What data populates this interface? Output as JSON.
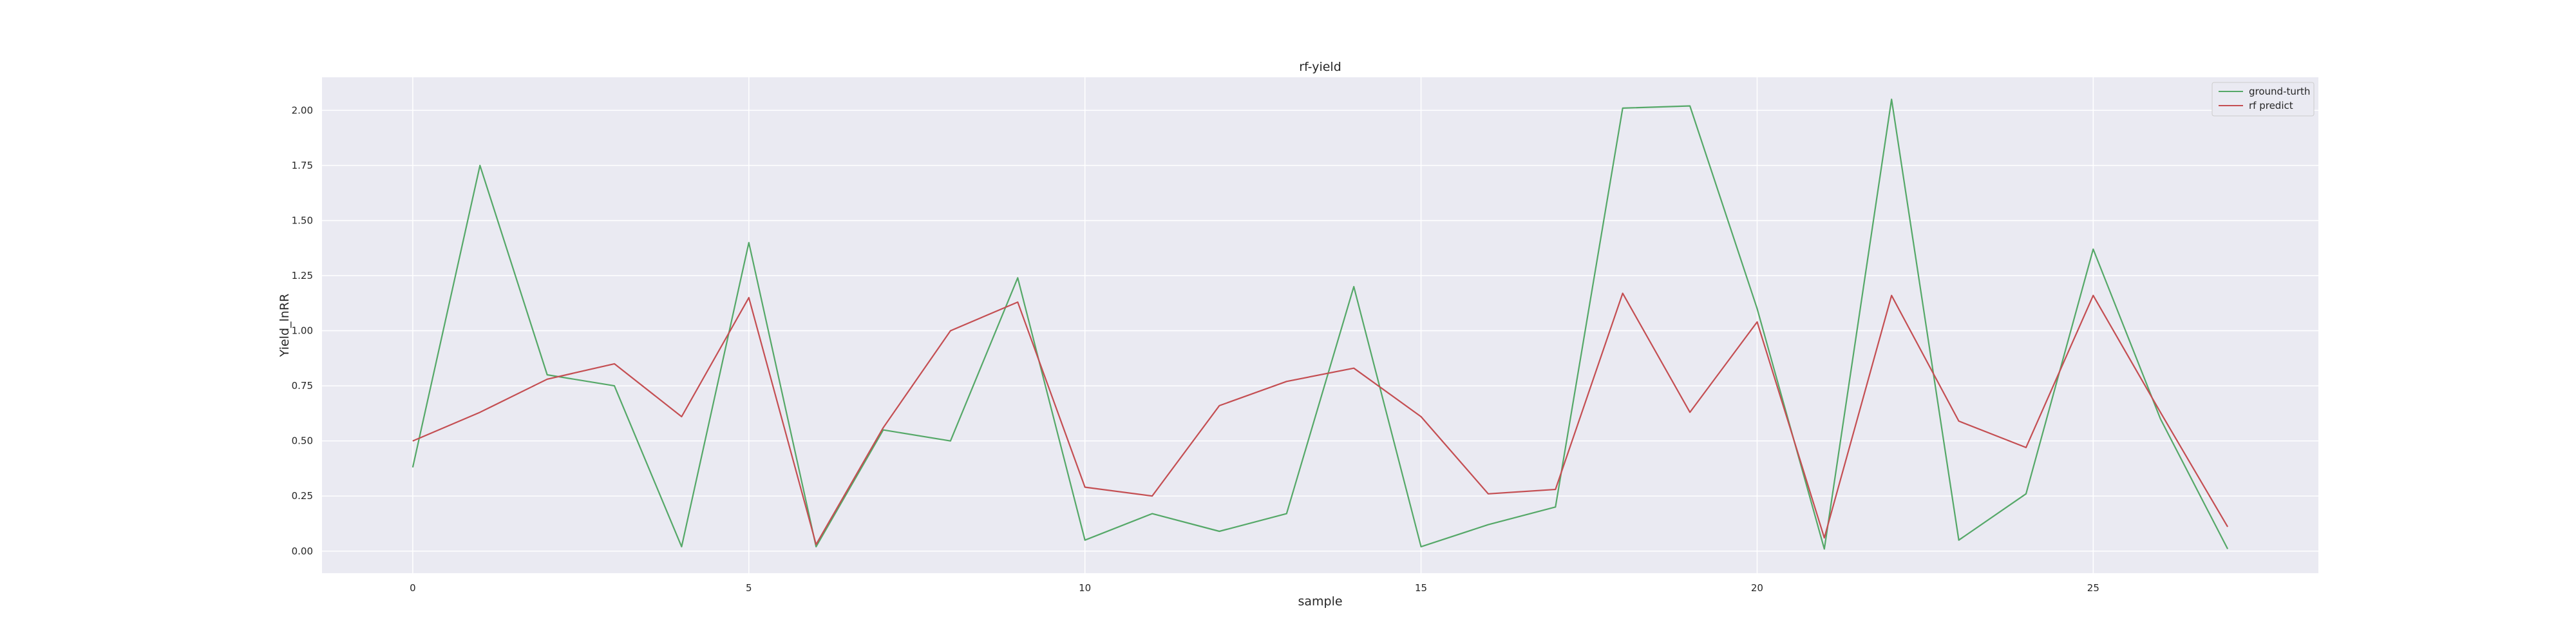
{
  "chart_data": {
    "type": "line",
    "title": "rf-yield",
    "xlabel": "sample",
    "ylabel": "Yield_lnRR",
    "xlim": [
      -1.35,
      28.35
    ],
    "ylim": [
      -0.1,
      2.15
    ],
    "xticks": [
      0,
      5,
      10,
      15,
      20,
      25
    ],
    "yticks": [
      0.0,
      0.25,
      0.5,
      0.75,
      1.0,
      1.25,
      1.5,
      1.75,
      2.0
    ],
    "ytick_labels": [
      "0.00",
      "0.25",
      "0.50",
      "0.75",
      "1.00",
      "1.25",
      "1.50",
      "1.75",
      "2.00"
    ],
    "grid": true,
    "legend_position": "top-right",
    "x": [
      0,
      1,
      2,
      3,
      4,
      5,
      6,
      7,
      8,
      9,
      10,
      11,
      12,
      13,
      14,
      15,
      16,
      17,
      18,
      19,
      20,
      21,
      22,
      23,
      24,
      25,
      26,
      27
    ],
    "series": [
      {
        "name": "ground-turth",
        "color": "#55a868",
        "values": [
          0.38,
          1.75,
          0.8,
          0.75,
          0.02,
          1.4,
          0.02,
          0.55,
          0.5,
          1.24,
          0.05,
          0.17,
          0.09,
          0.17,
          1.2,
          0.02,
          0.12,
          0.2,
          2.01,
          2.02,
          1.1,
          0.01,
          2.05,
          0.05,
          0.26,
          1.37,
          0.6,
          0.01
        ]
      },
      {
        "name": "rf predict",
        "color": "#c44e52",
        "values": [
          0.5,
          0.63,
          0.78,
          0.85,
          0.61,
          1.15,
          0.03,
          0.56,
          1.0,
          1.13,
          0.29,
          0.25,
          0.66,
          0.77,
          0.83,
          0.61,
          0.26,
          0.28,
          1.17,
          0.63,
          1.04,
          0.06,
          1.16,
          0.59,
          0.47,
          1.16,
          0.63,
          0.11
        ]
      }
    ]
  }
}
